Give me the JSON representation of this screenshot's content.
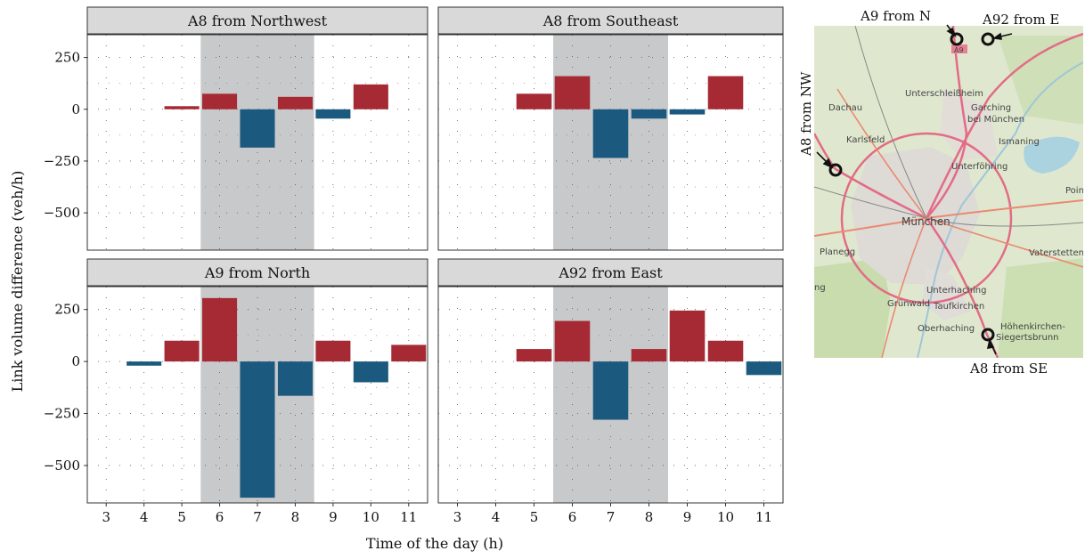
{
  "chart_data": {
    "type": "bar",
    "x": [
      3,
      4,
      5,
      6,
      7,
      8,
      9,
      10,
      11
    ],
    "xlabel": "Time of the day (h)",
    "ylabel": "Link volume difference (veh/h)",
    "ylim": [
      -680,
      360
    ],
    "yticks": [
      250,
      0,
      -250,
      -500
    ],
    "ytick_labels": [
      "250",
      "0",
      "−250",
      "−500"
    ],
    "highlight_range": [
      6,
      8
    ],
    "positive_color": "#a52a33",
    "negative_color": "#1b5a7e",
    "highlight_color": "#c8c9cb",
    "grid": "dotted",
    "panels": [
      {
        "title": "A8 from Northwest",
        "values": [
          0,
          0,
          15,
          75,
          -185,
          60,
          -45,
          120,
          0
        ]
      },
      {
        "title": "A8 from Southeast",
        "values": [
          0,
          0,
          75,
          160,
          -235,
          -45,
          -25,
          160,
          0
        ]
      },
      {
        "title": "A9 from North",
        "values": [
          0,
          -20,
          100,
          305,
          -655,
          -165,
          100,
          -100,
          80
        ]
      },
      {
        "title": "A92 from East",
        "values": [
          0,
          0,
          60,
          195,
          -280,
          60,
          245,
          100,
          -65
        ]
      }
    ]
  },
  "map": {
    "labels": {
      "a9_n": "A9 from N",
      "a92_e": "A92 from E",
      "a8_nw": "A8 from NW",
      "a8_se": "A8 from SE"
    },
    "places": {
      "unterschleissheim": "Unterschleißheim",
      "dachau": "Dachau",
      "garching": "Garching",
      "bei_muenchen": "bei München",
      "karlsfeld": "Karlsfeld",
      "ismaning": "Ismaning",
      "unterfoehring": "Unterföhring",
      "muenchen": "München",
      "poin": "Poin",
      "planegg": "Planegg",
      "vaterstetten": "Vaterstetten",
      "ng": "ng",
      "unterhaching": "Unterhaching",
      "gruenwald": "Grünwald",
      "taufkirchen": "Taufkirchen",
      "oberhaching": "Oberhaching",
      "hoehenkirchen": "Höhenkirchen-",
      "siegertsbrunn": "Siegertsbrunn",
      "a9_shield": "A9"
    }
  }
}
